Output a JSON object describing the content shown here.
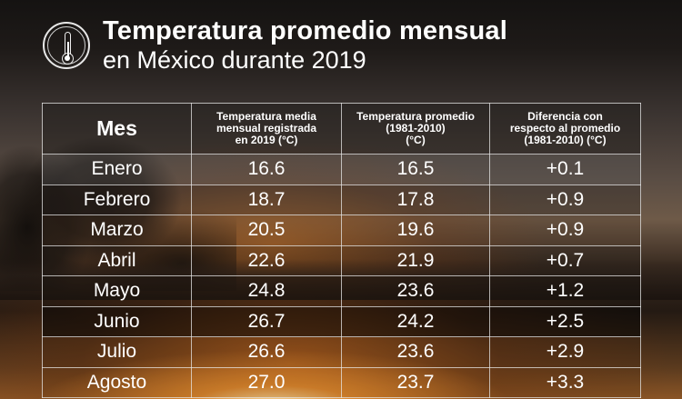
{
  "header": {
    "icon": "thermometer-icon",
    "title_main": "Temperatura promedio mensual",
    "title_sub": "en México durante 2019"
  },
  "table": {
    "columns": [
      "Mes",
      "Temperatura media mensual registrada en 2019 (°C)",
      "Temperatura promedio (1981-2010) (°C)",
      "Diferencia con respecto al promedio (1981-2010) (°C)"
    ],
    "column_lines": [
      [
        "Mes"
      ],
      [
        "Temperatura media",
        "mensual registrada",
        "en 2019 (°C)"
      ],
      [
        "Temperatura promedio",
        "(1981-2010)",
        "(°C)"
      ],
      [
        "Diferencia con",
        "respecto al promedio",
        "(1981-2010) (°C)"
      ]
    ],
    "rows": [
      {
        "mes": "Enero",
        "t2019": "16.6",
        "prom": "16.5",
        "diff": "+0.1"
      },
      {
        "mes": "Febrero",
        "t2019": "18.7",
        "prom": "17.8",
        "diff": "+0.9"
      },
      {
        "mes": "Marzo",
        "t2019": "20.5",
        "prom": "19.6",
        "diff": "+0.9"
      },
      {
        "mes": "Abril",
        "t2019": "22.6",
        "prom": "21.9",
        "diff": "+0.7"
      },
      {
        "mes": "Mayo",
        "t2019": "24.8",
        "prom": "23.6",
        "diff": "+1.2"
      },
      {
        "mes": "Junio",
        "t2019": "26.7",
        "prom": "24.2",
        "diff": "+2.5"
      },
      {
        "mes": "Julio",
        "t2019": "26.6",
        "prom": "23.6",
        "diff": "+2.9"
      },
      {
        "mes": "Agosto",
        "t2019": "27.0",
        "prom": "23.7",
        "diff": "+3.3"
      }
    ]
  },
  "chart_data": {
    "type": "table",
    "title": "Temperatura promedio mensual en México durante 2019",
    "columns": [
      "Mes",
      "Temperatura media mensual registrada en 2019 (°C)",
      "Temperatura promedio (1981-2010) (°C)",
      "Diferencia con respecto al promedio (1981-2010) (°C)"
    ],
    "categories": [
      "Enero",
      "Febrero",
      "Marzo",
      "Abril",
      "Mayo",
      "Junio",
      "Julio",
      "Agosto"
    ],
    "series": [
      {
        "name": "Temperatura media mensual registrada en 2019 (°C)",
        "values": [
          16.6,
          18.7,
          20.5,
          22.6,
          24.8,
          26.7,
          26.6,
          27.0
        ]
      },
      {
        "name": "Temperatura promedio (1981-2010) (°C)",
        "values": [
          16.5,
          17.8,
          19.6,
          21.9,
          23.6,
          24.2,
          23.6,
          23.7
        ]
      },
      {
        "name": "Diferencia con respecto al promedio (1981-2010) (°C)",
        "values": [
          0.1,
          0.9,
          0.9,
          0.7,
          1.2,
          2.5,
          2.9,
          3.3
        ]
      }
    ]
  }
}
